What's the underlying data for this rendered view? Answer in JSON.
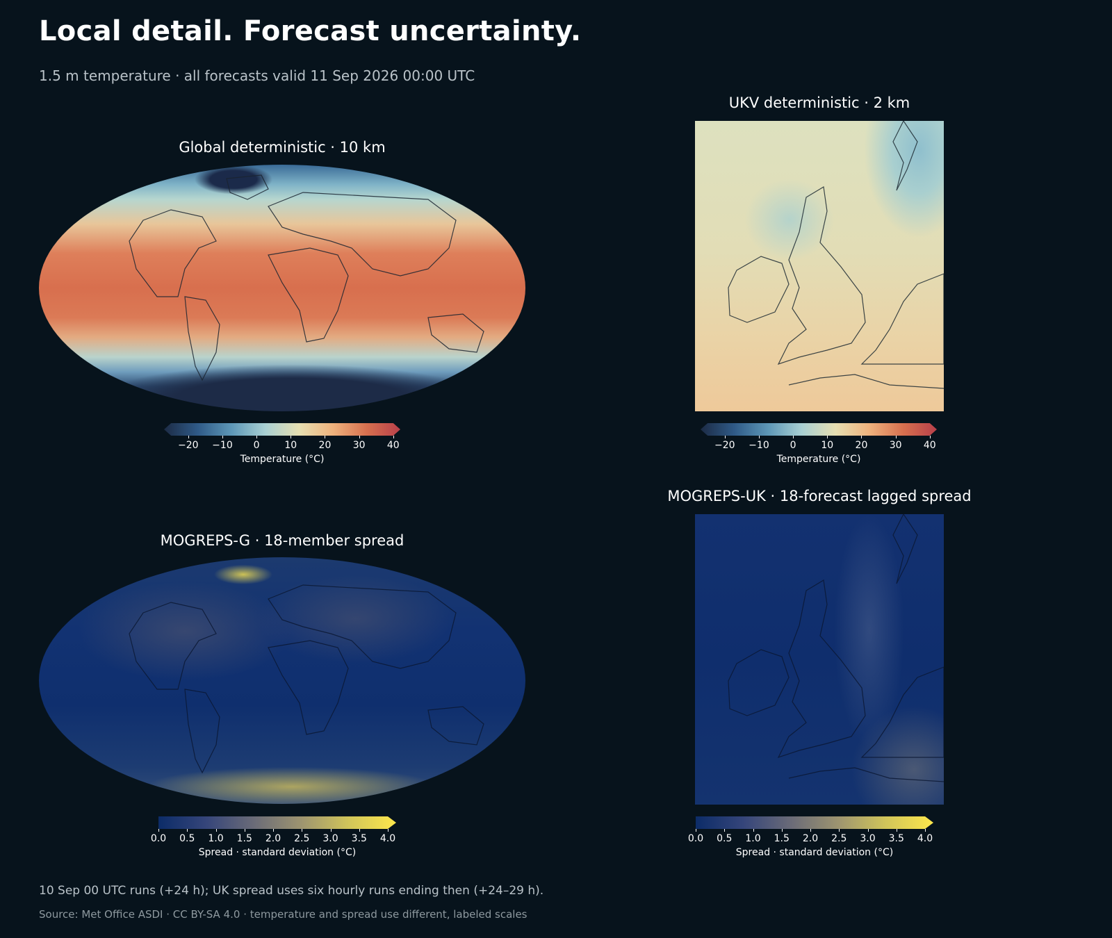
{
  "header": {
    "title": "Local detail. Forecast uncertainty.",
    "subtitle": "1.5 m temperature · all forecasts valid 11 Sep 2026 00:00 UTC"
  },
  "panels": {
    "global_det": {
      "title": "Global deterministic · 10 km",
      "colorbar": {
        "label": "Temperature (°C)",
        "ticks": [
          "−20",
          "−10",
          "0",
          "10",
          "20",
          "30",
          "40"
        ],
        "min": -25,
        "max": 40,
        "extend": "both"
      }
    },
    "ukv_det": {
      "title": "UKV deterministic · 2 km",
      "colorbar": {
        "label": "Temperature (°C)",
        "ticks": [
          "−20",
          "−10",
          "0",
          "10",
          "20",
          "30",
          "40"
        ],
        "min": -25,
        "max": 40,
        "extend": "both"
      }
    },
    "mogreps_g": {
      "title": "MOGREPS-G · 18-member spread",
      "colorbar": {
        "label": "Spread · standard deviation (°C)",
        "ticks": [
          "0.0",
          "0.5",
          "1.0",
          "1.5",
          "2.0",
          "2.5",
          "3.0",
          "3.5",
          "4.0"
        ],
        "min": 0,
        "max": 4,
        "extend": "max"
      }
    },
    "mogreps_uk": {
      "title": "MOGREPS-UK · 18-forecast lagged spread",
      "colorbar": {
        "label": "Spread · standard deviation (°C)",
        "ticks": [
          "0.0",
          "0.5",
          "1.0",
          "1.5",
          "2.0",
          "2.5",
          "3.0",
          "3.5",
          "4.0"
        ],
        "min": 0,
        "max": 4,
        "extend": "max"
      }
    }
  },
  "footer": {
    "note": "10 Sep 00 UTC runs (+24 h); UK spread uses six hourly runs ending then (+24–29 h).",
    "source": "Source: Met Office ASDI · CC BY-SA 4.0 · temperature and spread use different, labeled scales"
  },
  "colors": {
    "background": "#07131c",
    "temp_cmap": [
      "#1c2b45",
      "#2f5a87",
      "#5d97b7",
      "#a9d0d3",
      "#e6dfb2",
      "#eeb27d",
      "#d7704f",
      "#b8404a"
    ],
    "spread_cmap": [
      "#0c2c68",
      "#35457a",
      "#6a6b78",
      "#9d9470",
      "#d1c55a",
      "#fde74c"
    ]
  }
}
